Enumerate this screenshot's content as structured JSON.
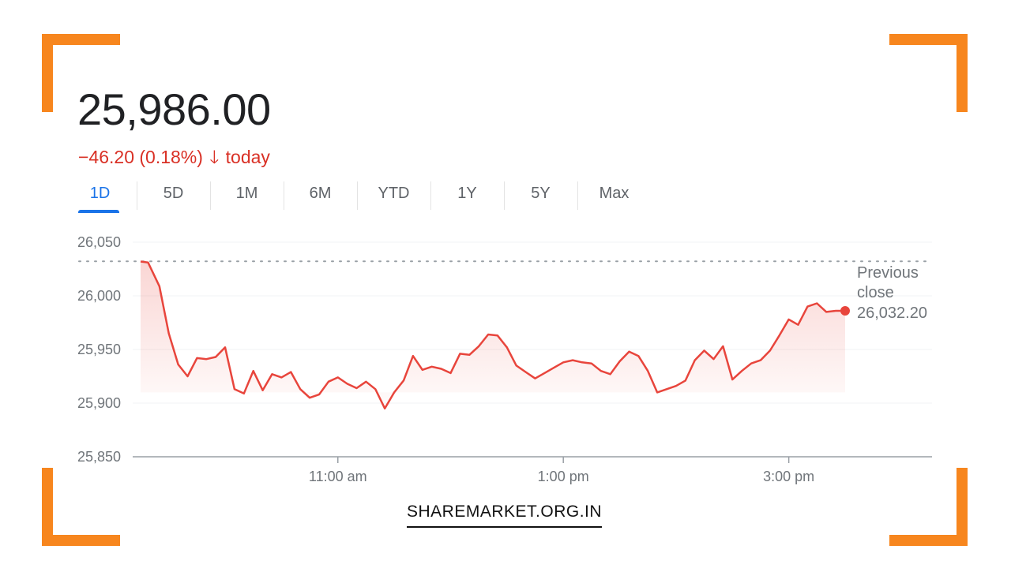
{
  "quote": {
    "price": "25,986.00",
    "change": "−46.20 (0.18%)",
    "change_arrow": "🡓",
    "change_suffix": "today"
  },
  "tabs": [
    {
      "label": "1D",
      "active": true
    },
    {
      "label": "5D"
    },
    {
      "label": "1M"
    },
    {
      "label": "6M"
    },
    {
      "label": "YTD"
    },
    {
      "label": "1Y"
    },
    {
      "label": "5Y"
    },
    {
      "label": "Max"
    }
  ],
  "previous_close": {
    "label_line1": "Previous",
    "label_line2": "close",
    "value": "26,032.20"
  },
  "brand": "SHAREMARKET.ORG.IN",
  "colors": {
    "accent": "#f7861e",
    "line": "#e8453c",
    "tab_active": "#1a73e8",
    "negative": "#d93025"
  },
  "chart_data": {
    "type": "area",
    "ylim": [
      25850,
      26050
    ],
    "yticks": [
      "26,050",
      "26,000",
      "25,950",
      "25,900",
      "25,850"
    ],
    "ytick_values": [
      26050,
      26000,
      25950,
      25900,
      25850
    ],
    "xlim_minutes": [
      555,
      930
    ],
    "xticks": [
      {
        "label": "11:00 am",
        "t": 660
      },
      {
        "label": "1:00 pm",
        "t": 780
      },
      {
        "label": "3:00 pm",
        "t": 900
      }
    ],
    "previous_close": 26032.2,
    "series": [
      {
        "points": [
          [
            555,
            26032
          ],
          [
            559,
            26031
          ],
          [
            565,
            26009
          ],
          [
            570,
            25965
          ],
          [
            575,
            25936
          ],
          [
            580,
            25925
          ],
          [
            585,
            25942
          ],
          [
            590,
            25941
          ],
          [
            595,
            25943
          ],
          [
            600,
            25952
          ],
          [
            605,
            25913
          ],
          [
            610,
            25909
          ],
          [
            615,
            25930
          ],
          [
            620,
            25912
          ],
          [
            625,
            25927
          ],
          [
            630,
            25924
          ],
          [
            635,
            25929
          ],
          [
            640,
            25913
          ],
          [
            645,
            25905
          ],
          [
            650,
            25908
          ],
          [
            655,
            25920
          ],
          [
            660,
            25924
          ],
          [
            665,
            25918
          ],
          [
            670,
            25914
          ],
          [
            675,
            25920
          ],
          [
            680,
            25913
          ],
          [
            685,
            25895
          ],
          [
            690,
            25910
          ],
          [
            695,
            25921
          ],
          [
            700,
            25944
          ],
          [
            705,
            25931
          ],
          [
            710,
            25934
          ],
          [
            715,
            25932
          ],
          [
            720,
            25928
          ],
          [
            725,
            25946
          ],
          [
            730,
            25945
          ],
          [
            735,
            25953
          ],
          [
            740,
            25964
          ],
          [
            745,
            25963
          ],
          [
            750,
            25952
          ],
          [
            755,
            25935
          ],
          [
            760,
            25929
          ],
          [
            765,
            25923
          ],
          [
            770,
            25928
          ],
          [
            775,
            25933
          ],
          [
            780,
            25938
          ],
          [
            785,
            25940
          ],
          [
            790,
            25938
          ],
          [
            795,
            25937
          ],
          [
            800,
            25930
          ],
          [
            805,
            25927
          ],
          [
            810,
            25939
          ],
          [
            815,
            25948
          ],
          [
            820,
            25944
          ],
          [
            825,
            25930
          ],
          [
            830,
            25910
          ],
          [
            835,
            25913
          ],
          [
            840,
            25916
          ],
          [
            845,
            25921
          ],
          [
            850,
            25940
          ],
          [
            855,
            25949
          ],
          [
            860,
            25941
          ],
          [
            865,
            25953
          ],
          [
            870,
            25922
          ],
          [
            875,
            25930
          ],
          [
            880,
            25937
          ],
          [
            885,
            25940
          ],
          [
            890,
            25949
          ],
          [
            895,
            25963
          ],
          [
            900,
            25978
          ],
          [
            905,
            25973
          ],
          [
            910,
            25990
          ],
          [
            915,
            25993
          ],
          [
            920,
            25985
          ],
          [
            925,
            25986
          ],
          [
            930,
            25986
          ]
        ]
      }
    ]
  }
}
